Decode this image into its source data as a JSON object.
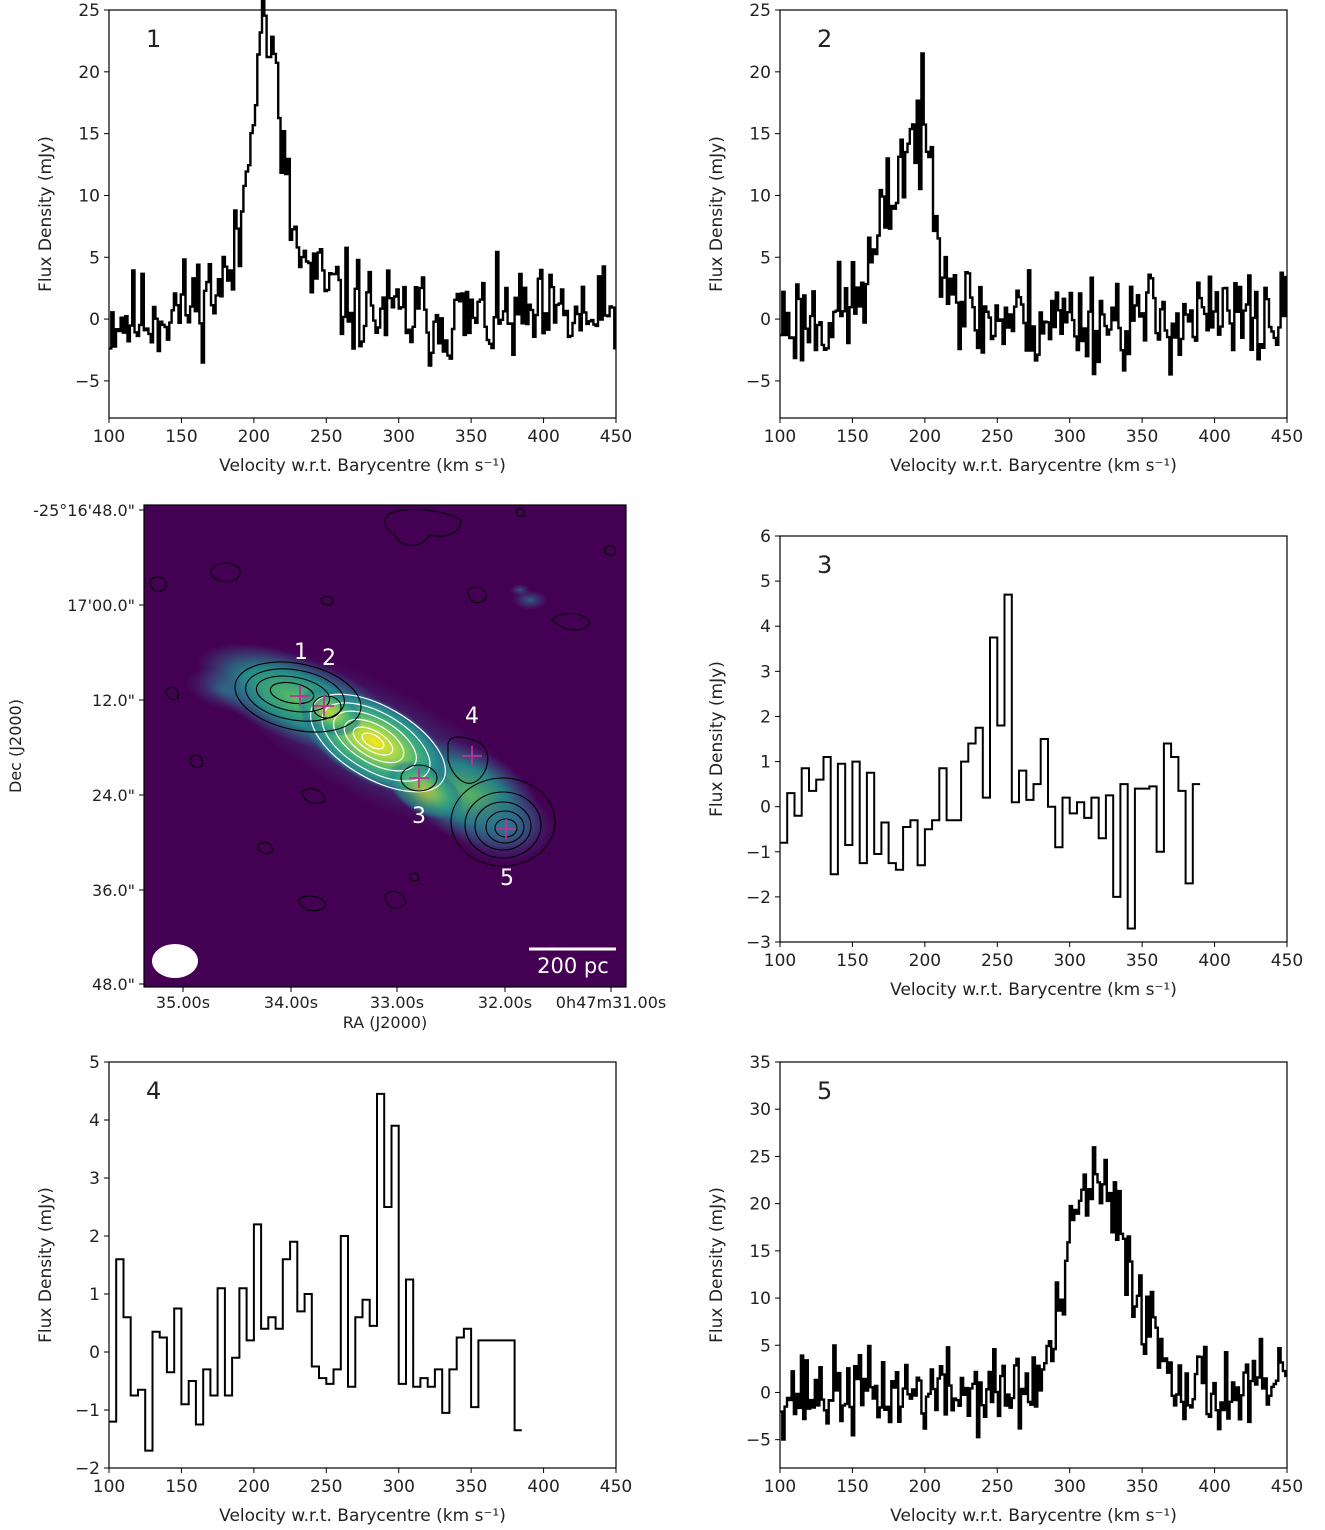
{
  "figure": {
    "colors": {
      "line": "#000000",
      "map_low": "#440154",
      "map_mid": "#21918c",
      "map_high": "#fde725",
      "cross": "#c0309a",
      "contour_white": "#ffffff"
    }
  },
  "chart_data": [
    {
      "panel": "1",
      "type": "line",
      "step": true,
      "xlabel": "Velocity w.r.t. Barycentre (km s⁻¹)",
      "ylabel": "Flux Density (mJy)",
      "xlim": [
        100,
        450
      ],
      "ylim": [
        -8,
        25
      ],
      "xticks": [
        100,
        150,
        200,
        250,
        300,
        350,
        400,
        450
      ],
      "yticks": [
        -5,
        0,
        5,
        10,
        15,
        20,
        25
      ],
      "bin_width": 1.6,
      "x_start": 100,
      "profile": {
        "center": 206,
        "sigma_l": 8,
        "sigma_r": 11,
        "peak": 20,
        "noise": 1.9,
        "wing_amp": 4.5,
        "wing_center": 212,
        "wing_sigma": 35,
        "seed": 11
      },
      "values": []
    },
    {
      "panel": "2",
      "type": "line",
      "step": true,
      "xlabel": "Velocity w.r.t. Barycentre (km s⁻¹)",
      "ylabel": "Flux Density (mJy)",
      "xlim": [
        100,
        450
      ],
      "ylim": [
        -8,
        25
      ],
      "xticks": [
        100,
        150,
        200,
        250,
        300,
        350,
        400,
        450
      ],
      "yticks": [
        -5,
        0,
        5,
        10,
        15,
        20,
        25
      ],
      "bin_width": 1.6,
      "x_start": 100,
      "profile": {
        "center": 195,
        "sigma_l": 20,
        "sigma_r": 14,
        "peak": 15,
        "noise": 2.0,
        "wing_amp": 0,
        "wing_center": 195,
        "wing_sigma": 30,
        "seed": 23
      },
      "values": []
    },
    {
      "panel": "3",
      "type": "line",
      "step": true,
      "xlabel": "Velocity w.r.t. Barycentre (km s⁻¹)",
      "ylabel": "Flux Density (mJy)",
      "xlim": [
        100,
        450
      ],
      "ylim": [
        -3,
        6
      ],
      "xticks": [
        100,
        150,
        200,
        250,
        300,
        350,
        400,
        450
      ],
      "yticks": [
        -3,
        -2,
        -1,
        0,
        1,
        2,
        3,
        4,
        5,
        6
      ],
      "bin_width": 5,
      "x_start": 100,
      "values": [
        -0.8,
        0.3,
        -0.2,
        0.85,
        0.35,
        0.6,
        1.1,
        -1.5,
        0.95,
        -0.85,
        1.0,
        -1.25,
        0.75,
        -1.05,
        -0.35,
        -1.25,
        -1.4,
        -0.45,
        -0.3,
        -1.3,
        -0.5,
        -0.3,
        0.85,
        -0.3,
        -0.3,
        1.0,
        1.4,
        1.75,
        0.2,
        3.75,
        1.8,
        4.7,
        0.1,
        0.8,
        0.15,
        0.5,
        1.5,
        0.0,
        -0.9,
        0.2,
        -0.15,
        0.1,
        -0.25,
        0.2,
        -0.7,
        0.25,
        -2.0,
        0.5,
        -2.7,
        0.4,
        0.4,
        0.45,
        -1.0,
        1.4,
        1.1,
        0.35,
        -1.7,
        0.5
      ]
    },
    {
      "panel": "4",
      "type": "line",
      "step": true,
      "xlabel": "Velocity w.r.t. Barycentre (km s⁻¹)",
      "ylabel": "Flux Density (mJy)",
      "xlim": [
        100,
        450
      ],
      "ylim": [
        -2,
        5
      ],
      "xticks": [
        100,
        150,
        200,
        250,
        300,
        350,
        400,
        450
      ],
      "yticks": [
        -2,
        -1,
        0,
        1,
        2,
        3,
        4,
        5
      ],
      "bin_width": 5,
      "x_start": 100,
      "values": [
        -1.2,
        1.6,
        0.6,
        -0.75,
        -0.65,
        -1.7,
        0.35,
        0.25,
        -0.35,
        0.75,
        -0.9,
        -0.5,
        -1.25,
        -0.3,
        -0.75,
        1.1,
        -0.75,
        -0.1,
        1.1,
        0.2,
        2.2,
        0.4,
        0.6,
        0.4,
        1.6,
        1.9,
        0.7,
        1.0,
        -0.25,
        -0.45,
        -0.55,
        -0.3,
        2.0,
        -0.6,
        0.6,
        0.9,
        0.45,
        4.45,
        2.5,
        3.9,
        -0.55,
        1.25,
        -0.6,
        -0.45,
        -0.6,
        -0.3,
        -1.05,
        -0.3,
        0.25,
        0.4,
        -0.95,
        0.2,
        0.2,
        0.2,
        0.2,
        0.2,
        -1.35
      ]
    },
    {
      "panel": "5",
      "type": "line",
      "step": true,
      "xlabel": "Velocity w.r.t. Barycentre (km s⁻¹)",
      "ylabel": "Flux Density (mJy)",
      "xlim": [
        100,
        450
      ],
      "ylim": [
        -8,
        35
      ],
      "xticks": [
        100,
        150,
        200,
        250,
        300,
        350,
        400,
        450
      ],
      "yticks": [
        -5,
        0,
        5,
        10,
        15,
        20,
        25,
        30,
        35
      ],
      "bin_width": 1.6,
      "x_start": 100,
      "profile": {
        "center": 314,
        "sigma_l": 15,
        "sigma_r": 28,
        "peak": 22,
        "noise": 2.2,
        "wing_amp": 0,
        "wing_center": 314,
        "wing_sigma": 30,
        "seed": 37
      },
      "values": []
    },
    {
      "panel": "map",
      "type": "heatmap",
      "xlabel": "RA (J2000)",
      "ylabel": "Dec (J2000)",
      "xticklabels": [
        "35.00s",
        "34.00s",
        "33.00s",
        "32.00s",
        "0h47m31.00s"
      ],
      "yticklabels": [
        "-25°16'48.0\"",
        "17'00.0\"",
        "12.0\"",
        "24.0\"",
        "36.0\"",
        "48.0\""
      ],
      "scalebar_label": "200 pc",
      "region_labels": [
        "1",
        "2",
        "3",
        "4",
        "5"
      ]
    }
  ]
}
